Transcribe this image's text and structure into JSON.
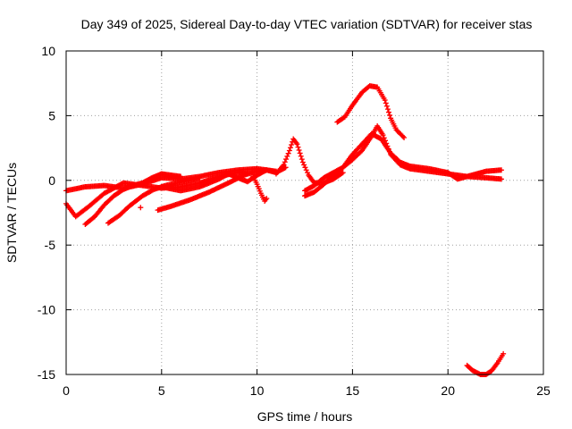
{
  "chart_data": {
    "type": "scatter",
    "title": "Day 349 of 2025, Sidereal Day-to-day VTEC variation (SDTVAR) for receiver stas",
    "xlabel": "GPS time / hours",
    "ylabel": "SDTVAR / TECUs",
    "xlim": [
      0,
      25
    ],
    "ylim": [
      -15,
      10
    ],
    "xticks": [
      0,
      5,
      10,
      15,
      20,
      25
    ],
    "yticks": [
      -15,
      -10,
      -5,
      0,
      5,
      10
    ],
    "grid": true,
    "marker": "+",
    "color": "#ff0000",
    "series": [
      {
        "name": "arc-low-1",
        "points": [
          [
            0,
            -0.8
          ],
          [
            1,
            -0.5
          ],
          [
            2,
            -0.4
          ],
          [
            3,
            -0.6
          ],
          [
            4,
            -0.3
          ],
          [
            5,
            0.2
          ],
          [
            6,
            0.1
          ],
          [
            7,
            0.3
          ],
          [
            8,
            0.6
          ],
          [
            9,
            0.8
          ],
          [
            10,
            0.9
          ],
          [
            11,
            0.7
          ]
        ]
      },
      {
        "name": "arc-low-2",
        "points": [
          [
            0,
            -1.8
          ],
          [
            0.5,
            -2.8
          ],
          [
            1.2,
            -2.0
          ],
          [
            2,
            -1.0
          ],
          [
            3,
            -0.2
          ],
          [
            4,
            -0.4
          ],
          [
            5,
            -0.6
          ],
          [
            6,
            -0.5
          ],
          [
            7,
            -0.2
          ],
          [
            8,
            0.3
          ],
          [
            9,
            0.6
          ],
          [
            9.5,
            0.5
          ]
        ]
      },
      {
        "name": "arc-low-3",
        "points": [
          [
            1,
            -3.4
          ],
          [
            1.5,
            -2.8
          ],
          [
            2,
            -1.9
          ],
          [
            2.5,
            -1.2
          ],
          [
            3,
            -0.7
          ],
          [
            3.5,
            -0.4
          ],
          [
            4,
            -0.2
          ],
          [
            4.5,
            0.2
          ],
          [
            5,
            0.5
          ],
          [
            5.5,
            0.4
          ],
          [
            6,
            0.3
          ]
        ]
      },
      {
        "name": "arc-low-4",
        "points": [
          [
            2.2,
            -3.3
          ],
          [
            2.8,
            -2.7
          ],
          [
            3.3,
            -2.0
          ],
          [
            4,
            -1.2
          ],
          [
            4.6,
            -0.7
          ],
          [
            5.2,
            -0.4
          ],
          [
            5.8,
            -0.2
          ],
          [
            6.5,
            0.0
          ],
          [
            7,
            0.2
          ]
        ]
      },
      {
        "name": "arc-mid-1",
        "points": [
          [
            4.8,
            -2.3
          ],
          [
            5.5,
            -2.0
          ],
          [
            6.5,
            -1.5
          ],
          [
            7.5,
            -0.9
          ],
          [
            8.5,
            -0.2
          ],
          [
            9.3,
            0.4
          ],
          [
            10,
            0.7
          ],
          [
            10.5,
            0.8
          ],
          [
            11,
            0.6
          ],
          [
            11.5,
            1.0
          ]
        ]
      },
      {
        "name": "arc-mid-2",
        "points": [
          [
            5,
            -0.5
          ],
          [
            6,
            -0.8
          ],
          [
            7,
            -0.5
          ],
          [
            8,
            0.1
          ],
          [
            8.5,
            0.5
          ],
          [
            9,
            0.2
          ],
          [
            9.5,
            -0.1
          ],
          [
            10,
            0.4
          ],
          [
            10.5,
            0.8
          ]
        ]
      },
      {
        "name": "arc-dip-10",
        "points": [
          [
            9.8,
            0.3
          ],
          [
            10,
            -0.3
          ],
          [
            10.2,
            -1.0
          ],
          [
            10.4,
            -1.6
          ],
          [
            10.5,
            -1.4
          ]
        ]
      },
      {
        "name": "arc-peak-12",
        "points": [
          [
            11,
            0.5
          ],
          [
            11.4,
            1.2
          ],
          [
            11.7,
            2.3
          ],
          [
            11.9,
            3.2
          ],
          [
            12.1,
            2.8
          ],
          [
            12.4,
            1.4
          ],
          [
            12.7,
            0.4
          ],
          [
            13,
            -0.2
          ],
          [
            13.5,
            -0.2
          ],
          [
            14,
            0.1
          ],
          [
            14.5,
            0.6
          ]
        ]
      },
      {
        "name": "arc-rise-1",
        "points": [
          [
            12.5,
            -0.8
          ],
          [
            13,
            -0.4
          ],
          [
            13.5,
            0.2
          ],
          [
            14,
            0.6
          ],
          [
            14.5,
            1.0
          ],
          [
            15,
            1.6
          ],
          [
            15.5,
            2.3
          ],
          [
            16,
            3.4
          ],
          [
            16.3,
            4.2
          ],
          [
            16.6,
            3.5
          ],
          [
            17,
            2.0
          ],
          [
            17.5,
            1.2
          ],
          [
            18,
            0.9
          ],
          [
            19,
            0.7
          ],
          [
            20,
            0.5
          ],
          [
            21,
            0.3
          ],
          [
            22,
            0.2
          ],
          [
            22.8,
            0.1
          ]
        ]
      },
      {
        "name": "arc-rise-2",
        "points": [
          [
            12.5,
            -1.2
          ],
          [
            13,
            -0.9
          ],
          [
            13.5,
            -0.3
          ],
          [
            14,
            0.4
          ],
          [
            14.5,
            1.0
          ],
          [
            15,
            2.0
          ],
          [
            15.5,
            2.8
          ],
          [
            16,
            3.6
          ],
          [
            16.5,
            3.2
          ],
          [
            17,
            2.1
          ],
          [
            17.5,
            1.4
          ],
          [
            18,
            1.1
          ],
          [
            19,
            0.9
          ],
          [
            20,
            0.6
          ],
          [
            20.5,
            0.1
          ],
          [
            21,
            0.3
          ],
          [
            21.5,
            0.5
          ],
          [
            22,
            0.7
          ],
          [
            22.8,
            0.8
          ]
        ]
      },
      {
        "name": "arc-high",
        "points": [
          [
            14.2,
            4.5
          ],
          [
            14.6,
            4.9
          ],
          [
            15,
            5.8
          ],
          [
            15.5,
            6.8
          ],
          [
            15.9,
            7.3
          ],
          [
            16.3,
            7.2
          ],
          [
            16.7,
            6.2
          ],
          [
            17,
            4.8
          ],
          [
            17.3,
            3.9
          ],
          [
            17.7,
            3.3
          ]
        ]
      },
      {
        "name": "arc-neg",
        "points": [
          [
            21,
            -14.3
          ],
          [
            21.3,
            -14.7
          ],
          [
            21.7,
            -15.0
          ],
          [
            22,
            -15.0
          ],
          [
            22.3,
            -14.7
          ],
          [
            22.6,
            -14.1
          ],
          [
            22.9,
            -13.4
          ]
        ]
      },
      {
        "name": "outlier",
        "points": [
          [
            3.9,
            -2.1
          ]
        ]
      }
    ]
  }
}
